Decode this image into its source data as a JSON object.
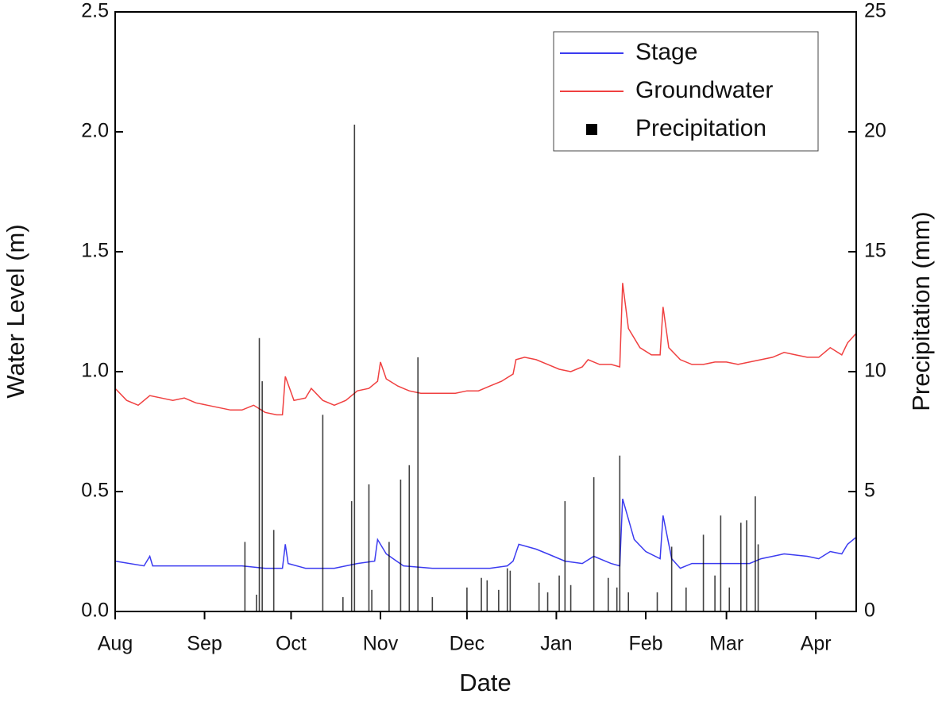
{
  "chart_data": {
    "type": "line",
    "xlabel": "Date",
    "ylabel": "Water Level (m)",
    "y2label": "Precipitation (mm)",
    "xlim": [
      0,
      257
    ],
    "xticks": [
      {
        "value": 0,
        "label": "Aug"
      },
      {
        "value": 31,
        "label": "Sep"
      },
      {
        "value": 61,
        "label": "Oct"
      },
      {
        "value": 92,
        "label": "Nov"
      },
      {
        "value": 122,
        "label": "Dec"
      },
      {
        "value": 153,
        "label": "Jan"
      },
      {
        "value": 184,
        "label": "Feb"
      },
      {
        "value": 212,
        "label": "Mar"
      },
      {
        "value": 243,
        "label": "Apr"
      }
    ],
    "ylim": [
      0,
      2.5
    ],
    "yticks": [
      {
        "value": 0,
        "label": "0.0"
      },
      0.5,
      {
        "value": 1,
        "label": "1.0"
      },
      1.5,
      {
        "value": 2,
        "label": "2.0"
      },
      2.5
    ],
    "y2lim": [
      0,
      25
    ],
    "y2ticks": [
      0,
      5,
      10,
      15,
      20,
      25
    ],
    "legend": "upper right",
    "series": [
      {
        "name": "Stage",
        "color": "#3b3bf0",
        "x": [
          0,
          10,
          12,
          13,
          30,
          44,
          52,
          58,
          59,
          60,
          66,
          76,
          84,
          90,
          91,
          94,
          100,
          110,
          120,
          130,
          136,
          138,
          140,
          146,
          150,
          156,
          162,
          166,
          172,
          175,
          176,
          180,
          184,
          189,
          190,
          193,
          196,
          200,
          210,
          220,
          224,
          232,
          240,
          244,
          248,
          252,
          254,
          257
        ],
        "values": [
          0.21,
          0.19,
          0.23,
          0.19,
          0.19,
          0.19,
          0.18,
          0.18,
          0.28,
          0.2,
          0.18,
          0.18,
          0.2,
          0.21,
          0.3,
          0.24,
          0.19,
          0.18,
          0.18,
          0.18,
          0.19,
          0.21,
          0.28,
          0.26,
          0.24,
          0.21,
          0.2,
          0.23,
          0.2,
          0.19,
          0.47,
          0.3,
          0.25,
          0.22,
          0.4,
          0.22,
          0.18,
          0.2,
          0.2,
          0.2,
          0.22,
          0.24,
          0.23,
          0.22,
          0.25,
          0.24,
          0.28,
          0.31
        ]
      },
      {
        "name": "Groundwater",
        "color": "#f04040",
        "x": [
          0,
          4,
          8,
          12,
          16,
          20,
          24,
          28,
          32,
          36,
          40,
          44,
          48,
          52,
          56,
          58,
          59,
          62,
          66,
          68,
          72,
          76,
          80,
          84,
          88,
          91,
          92,
          94,
          98,
          102,
          106,
          110,
          114,
          118,
          122,
          126,
          130,
          134,
          138,
          139,
          142,
          146,
          150,
          154,
          158,
          162,
          164,
          168,
          172,
          175,
          176,
          178,
          182,
          186,
          189,
          190,
          192,
          196,
          200,
          204,
          208,
          212,
          216,
          220,
          224,
          228,
          232,
          236,
          240,
          244,
          248,
          252,
          254,
          257
        ],
        "values": [
          0.93,
          0.88,
          0.86,
          0.9,
          0.89,
          0.88,
          0.89,
          0.87,
          0.86,
          0.85,
          0.84,
          0.84,
          0.86,
          0.83,
          0.82,
          0.82,
          0.98,
          0.88,
          0.89,
          0.93,
          0.88,
          0.86,
          0.88,
          0.92,
          0.93,
          0.96,
          1.04,
          0.97,
          0.94,
          0.92,
          0.91,
          0.91,
          0.91,
          0.91,
          0.92,
          0.92,
          0.94,
          0.96,
          0.99,
          1.05,
          1.06,
          1.05,
          1.03,
          1.01,
          1.0,
          1.02,
          1.05,
          1.03,
          1.03,
          1.02,
          1.37,
          1.18,
          1.1,
          1.07,
          1.07,
          1.27,
          1.1,
          1.05,
          1.03,
          1.03,
          1.04,
          1.04,
          1.03,
          1.04,
          1.05,
          1.06,
          1.08,
          1.07,
          1.06,
          1.06,
          1.1,
          1.07,
          1.12,
          1.16
        ]
      },
      {
        "name": "Precipitation",
        "color": "#000000",
        "type": "bar",
        "axis": "y2",
        "x": [
          45,
          49,
          50,
          51,
          55,
          72,
          79,
          82,
          83,
          88,
          89,
          95,
          99,
          102,
          105,
          110,
          122,
          127,
          129,
          133,
          136,
          137,
          147,
          150,
          154,
          156,
          158,
          166,
          171,
          174,
          175,
          178,
          188,
          193,
          198,
          204,
          208,
          210,
          213,
          217,
          219,
          222,
          223
        ],
        "values": [
          2.9,
          0.7,
          11.4,
          9.6,
          3.4,
          8.2,
          0.6,
          4.6,
          20.3,
          5.3,
          0.9,
          2.9,
          5.5,
          6.1,
          10.6,
          0.6,
          1.0,
          1.4,
          1.3,
          0.9,
          1.8,
          1.7,
          1.2,
          0.8,
          1.5,
          4.6,
          1.1,
          5.6,
          1.4,
          1.0,
          6.5,
          0.8,
          0.8,
          2.7,
          1.0,
          3.2,
          1.5,
          4.0,
          1.0,
          3.7,
          3.8,
          4.8,
          2.8
        ]
      }
    ]
  }
}
